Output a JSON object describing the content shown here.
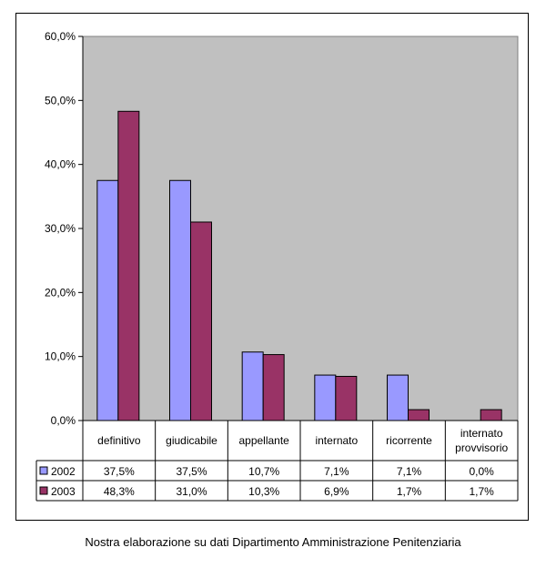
{
  "chart_data": {
    "type": "bar",
    "categories": [
      "definitivo",
      "giudicabile",
      "appellante",
      "internato",
      "ricorrente",
      "internato provvisorio"
    ],
    "category_lines": [
      [
        "definitivo"
      ],
      [
        "giudicabile"
      ],
      [
        "appellante"
      ],
      [
        "internato"
      ],
      [
        "ricorrente"
      ],
      [
        "internato",
        "provvisorio"
      ]
    ],
    "series": [
      {
        "name": "2002",
        "values": [
          37.5,
          37.5,
          10.7,
          7.1,
          7.1,
          0.0
        ],
        "labels": [
          "37,5%",
          "37,5%",
          "10,7%",
          "7,1%",
          "7,1%",
          "0,0%"
        ],
        "color": "#9999FF"
      },
      {
        "name": "2003",
        "values": [
          48.3,
          31.0,
          10.3,
          6.9,
          1.7,
          1.7
        ],
        "labels": [
          "48,3%",
          "31,0%",
          "10,3%",
          "6,9%",
          "1,7%",
          "1,7%"
        ],
        "color": "#993366"
      }
    ],
    "ylim": [
      0,
      60
    ],
    "yticks": [
      0,
      10,
      20,
      30,
      40,
      50,
      60
    ],
    "ytick_labels": [
      "0,0%",
      "10,0%",
      "20,0%",
      "30,0%",
      "40,0%",
      "50,0%",
      "60,0%"
    ],
    "plot_background": "#C0C0C0",
    "legend": "data-table",
    "grid": false
  },
  "source_note": "Nostra elaborazione su dati Dipartimento Amministrazione Penitenziaria"
}
